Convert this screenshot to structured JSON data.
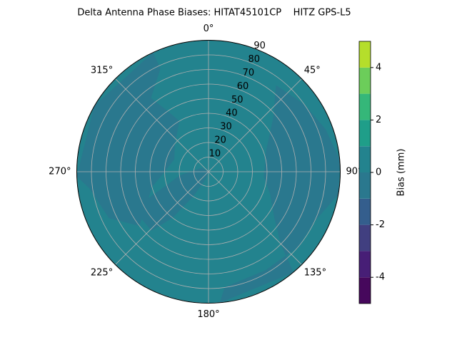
{
  "chart_data": {
    "type": "polar-contour",
    "title": "Delta Antenna Phase Biases: HITAT45101CP    HITZ GPS-L5",
    "rlim": [
      0,
      90
    ],
    "rticks": [
      10,
      20,
      30,
      40,
      50,
      60,
      70,
      80,
      90
    ],
    "thetaticks": [
      {
        "value": 0,
        "label": "0°"
      },
      {
        "value": 45,
        "label": "45°"
      },
      {
        "value": 90,
        "label": "90°"
      },
      {
        "value": 135,
        "label": "135°"
      },
      {
        "value": 180,
        "label": "180°"
      },
      {
        "value": 225,
        "label": "225°"
      },
      {
        "value": 270,
        "label": "270°"
      },
      {
        "value": 315,
        "label": "315°"
      }
    ],
    "grid": true,
    "background_range": [
      0,
      1
    ],
    "regions": [
      {
        "range": [
          -1,
          0
        ],
        "points": [
          [
            268,
            90
          ],
          [
            300,
            90
          ],
          [
            335,
            90
          ],
          [
            335,
            78
          ],
          [
            322,
            64
          ],
          [
            326,
            50
          ],
          [
            330,
            40
          ],
          [
            310,
            30
          ],
          [
            290,
            25
          ],
          [
            270,
            30
          ],
          [
            255,
            40
          ],
          [
            240,
            50
          ],
          [
            232,
            60
          ],
          [
            245,
            75
          ],
          [
            262,
            82
          ]
        ]
      },
      {
        "range": [
          -1,
          0
        ],
        "points": [
          [
            0,
            0
          ],
          [
            200,
            5
          ],
          [
            212,
            20
          ],
          [
            218,
            40
          ],
          [
            224,
            56
          ],
          [
            236,
            56
          ],
          [
            246,
            45
          ],
          [
            252,
            30
          ],
          [
            262,
            20
          ],
          [
            275,
            10
          ],
          [
            300,
            5
          ]
        ]
      },
      {
        "range": [
          -1,
          0
        ],
        "points": [
          [
            38,
            75
          ],
          [
            50,
            58
          ],
          [
            70,
            42
          ],
          [
            95,
            38
          ],
          [
            110,
            45
          ],
          [
            125,
            55
          ],
          [
            135,
            70
          ],
          [
            140,
            90
          ],
          [
            175,
            90
          ],
          [
            172,
            80
          ],
          [
            150,
            78
          ],
          [
            130,
            80
          ],
          [
            115,
            80
          ],
          [
            100,
            90
          ],
          [
            85,
            90
          ],
          [
            70,
            85
          ],
          [
            55,
            80
          ]
        ]
      }
    ],
    "colorbar": {
      "label": "Bias (mm)",
      "levels": [
        -5,
        -4,
        -3,
        -2,
        -1,
        0,
        1,
        2,
        3,
        4,
        5
      ],
      "colors": [
        "#46085c",
        "#471e76",
        "#413f80",
        "#345e8d",
        "#2a788e",
        "#23838e",
        "#1f9e89",
        "#35b779",
        "#6ccd5a",
        "#b5de2b",
        "#dde318"
      ],
      "lim": [
        -5,
        5
      ],
      "ticks": [
        -4,
        -2,
        0,
        2,
        4
      ]
    }
  }
}
